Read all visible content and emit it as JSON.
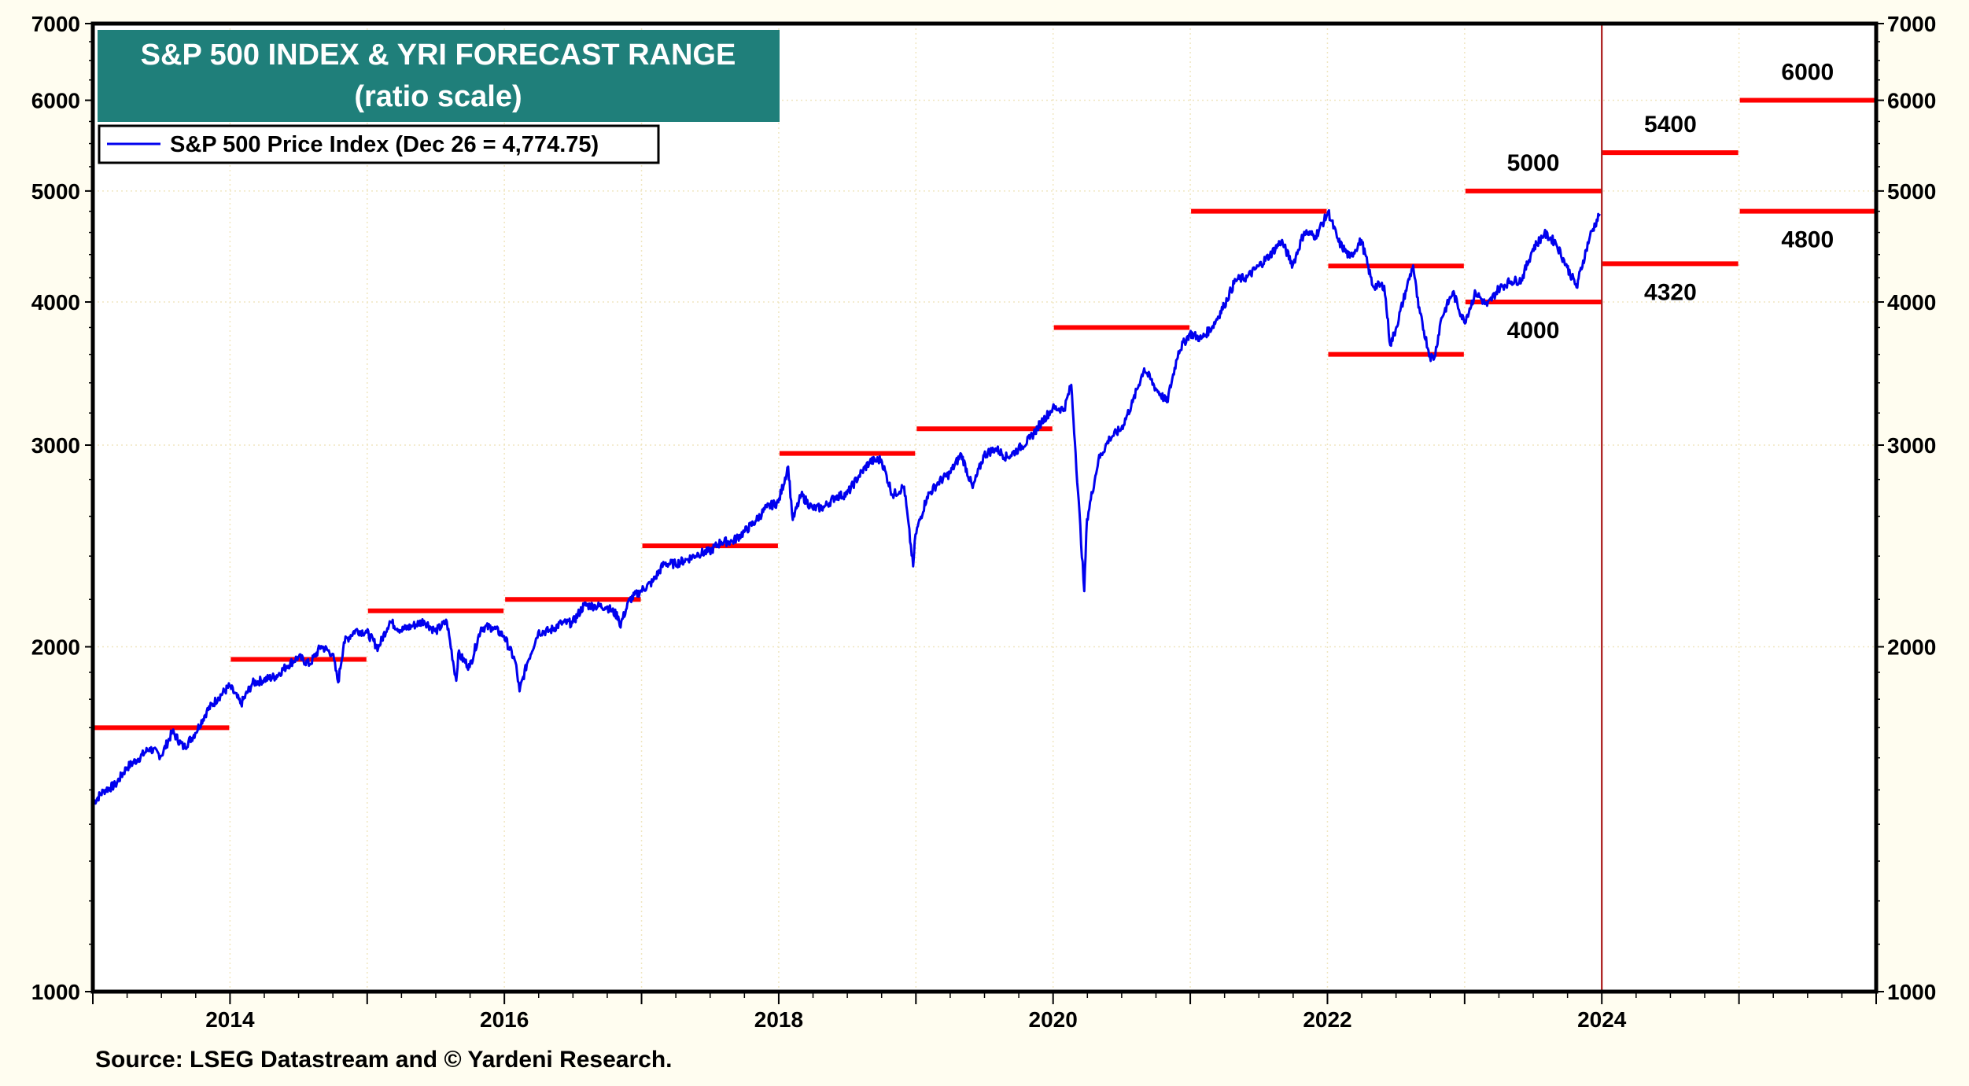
{
  "chart_data": {
    "type": "line",
    "title": "S&P 500 INDEX & YRI FORECAST RANGE",
    "subtitle": "(ratio scale)",
    "source": "Source: LSEG Datastream and © Yardeni Research.",
    "y_scale": "log",
    "ylim": [
      1000,
      7000
    ],
    "xlim": [
      2013,
      2026
    ],
    "y_ticks": [
      "1000",
      "2000",
      "3000",
      "4000",
      "5000",
      "6000",
      "7000"
    ],
    "x_ticks": [
      "2014",
      "2016",
      "2018",
      "2020",
      "2022",
      "2024"
    ],
    "grid": true,
    "legend_placement": "top-left",
    "colors": {
      "series": "#0000ee",
      "forecast": "#ff0000",
      "title_bg": "#1f7f7a",
      "divider": "#a00000"
    },
    "divider_year": 2024,
    "series": [
      {
        "name": "S&P 500 Price Index (Dec 26 = 4,774.75)",
        "x": [
          "2013-01-02",
          "2013-01",
          "2013-02",
          "2013-03",
          "2013-04",
          "2013-05",
          "2013-06",
          "2013-07",
          "2013-08",
          "2013-09",
          "2013-10",
          "2013-11",
          "2013-12",
          "2014-01",
          "2014-02",
          "2014-03",
          "2014-04",
          "2014-05",
          "2014-06",
          "2014-07",
          "2014-08",
          "2014-09",
          "2014-10-15",
          "2014-10",
          "2014-11",
          "2014-12",
          "2015-01",
          "2015-02",
          "2015-03",
          "2015-04",
          "2015-05",
          "2015-06",
          "2015-07",
          "2015-08-25",
          "2015-08",
          "2015-09",
          "2015-10",
          "2015-11",
          "2015-12",
          "2016-01",
          "2016-02-11",
          "2016-02",
          "2016-03",
          "2016-04",
          "2016-05",
          "2016-06",
          "2016-07",
          "2016-08",
          "2016-09",
          "2016-10",
          "2016-11-04",
          "2016-11",
          "2016-12",
          "2017-01",
          "2017-02",
          "2017-03",
          "2017-04",
          "2017-05",
          "2017-06",
          "2017-07",
          "2017-08",
          "2017-09",
          "2017-10",
          "2017-11",
          "2017-12",
          "2018-01-26",
          "2018-02-08",
          "2018-02",
          "2018-03",
          "2018-04",
          "2018-05",
          "2018-06",
          "2018-07",
          "2018-08",
          "2018-09",
          "2018-10",
          "2018-11",
          "2018-12-24",
          "2018-12",
          "2019-01",
          "2019-02",
          "2019-03",
          "2019-04",
          "2019-05",
          "2019-06",
          "2019-07",
          "2019-08",
          "2019-09",
          "2019-10",
          "2019-11",
          "2019-12",
          "2020-01",
          "2020-02-19",
          "2020-02",
          "2020-03-23",
          "2020-03",
          "2020-04",
          "2020-05",
          "2020-06",
          "2020-07",
          "2020-08",
          "2020-09",
          "2020-10",
          "2020-11",
          "2020-12",
          "2021-01",
          "2021-02",
          "2021-03",
          "2021-04",
          "2021-05",
          "2021-06",
          "2021-07",
          "2021-08",
          "2021-09",
          "2021-10",
          "2021-11",
          "2021-12",
          "2022-01-03",
          "2022-01",
          "2022-02",
          "2022-03",
          "2022-04",
          "2022-05",
          "2022-06-16",
          "2022-06",
          "2022-07",
          "2022-08-16",
          "2022-08",
          "2022-09",
          "2022-10-12",
          "2022-10",
          "2022-11",
          "2022-12",
          "2023-01",
          "2023-02",
          "2023-03",
          "2023-04",
          "2023-05",
          "2023-06",
          "2023-07",
          "2023-08",
          "2023-09",
          "2023-10-27",
          "2023-10",
          "2023-11",
          "2023-12-26"
        ],
        "y": [
          1462,
          1498,
          1515,
          1569,
          1597,
          1631,
          1606,
          1686,
          1633,
          1682,
          1757,
          1806,
          1848,
          1783,
          1859,
          1872,
          1884,
          1924,
          1960,
          1931,
          2003,
          1972,
          1862,
          2018,
          2068,
          2059,
          1995,
          2105,
          2068,
          2086,
          2107,
          2063,
          2104,
          1868,
          1972,
          1920,
          2079,
          2080,
          2044,
          1940,
          1829,
          1932,
          2060,
          2065,
          2097,
          2099,
          2174,
          2171,
          2168,
          2126,
          2085,
          2199,
          2239,
          2279,
          2364,
          2363,
          2384,
          2412,
          2423,
          2470,
          2472,
          2519,
          2575,
          2648,
          2674,
          2873,
          2581,
          2714,
          2641,
          2648,
          2705,
          2718,
          2816,
          2902,
          2914,
          2712,
          2760,
          2351,
          2507,
          2704,
          2784,
          2834,
          2946,
          2752,
          2942,
          2980,
          2926,
          2977,
          3038,
          3141,
          3231,
          3226,
          3386,
          2954,
          2237,
          2585,
          2912,
          3044,
          3100,
          3271,
          3500,
          3363,
          3270,
          3622,
          3756,
          3714,
          3811,
          3973,
          4181,
          4204,
          4298,
          4395,
          4523,
          4308,
          4605,
          4567,
          4766,
          4797,
          4516,
          4374,
          4530,
          4132,
          4132,
          3667,
          3785,
          4130,
          4305,
          3955,
          3586,
          3577,
          3872,
          4080,
          3840,
          4077,
          3970,
          4109,
          4169,
          4180,
          4450,
          4589,
          4508,
          4288,
          4117,
          4194,
          4568,
          4775
        ]
      }
    ],
    "forecasts": [
      {
        "year": 2013,
        "values": [
          1700
        ],
        "labels": []
      },
      {
        "year": 2014,
        "values": [
          1950
        ],
        "labels": []
      },
      {
        "year": 2015,
        "values": [
          2150
        ],
        "labels": []
      },
      {
        "year": 2016,
        "values": [
          2200
        ],
        "labels": []
      },
      {
        "year": 2017,
        "values": [
          2450
        ],
        "labels": []
      },
      {
        "year": 2018,
        "values": [
          2950
        ],
        "labels": []
      },
      {
        "year": 2019,
        "values": [
          3100
        ],
        "labels": []
      },
      {
        "year": 2020,
        "values": [
          3800
        ],
        "labels": []
      },
      {
        "year": 2021,
        "values": [
          4800
        ],
        "labels": []
      },
      {
        "year": 2022,
        "values": [
          4300,
          3600
        ],
        "labels": []
      },
      {
        "year": 2023,
        "values": [
          5000,
          4000
        ],
        "labels": [
          "5000",
          "4000"
        ]
      },
      {
        "year": 2024,
        "values": [
          5400,
          4320
        ],
        "labels": [
          "5400",
          "4320"
        ]
      },
      {
        "year": 2025,
        "values": [
          6000,
          4800
        ],
        "labels": [
          "6000",
          "4800"
        ]
      }
    ]
  }
}
